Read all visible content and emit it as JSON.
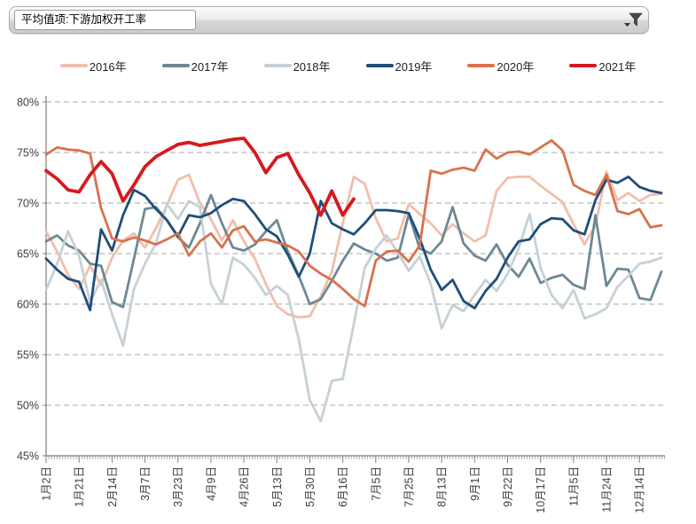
{
  "header": {
    "field_button_label": "平均值项:下游加权开工率",
    "filter_icon": "funnel-icon"
  },
  "chart_data": {
    "type": "line",
    "title": "",
    "xlabel": "",
    "ylabel": "",
    "ylim": [
      45,
      80
    ],
    "ytick_step": 5,
    "ytick_labels": [
      "80%",
      "75%",
      "70%",
      "65%",
      "60%",
      "55%",
      "50%",
      "45%"
    ],
    "grid": "dashed-horizontal",
    "legend_position": "top",
    "points_per_series": 57,
    "x_labels": [
      "1月2日",
      "1月21日",
      "2月14日",
      "3月7日",
      "3月23日",
      "4月9日",
      "4月26日",
      "5月13日",
      "5月30日",
      "6月16日",
      "7月5日",
      "7月25日",
      "8月13日",
      "9月1日",
      "9月22日",
      "10月17日",
      "11月5日",
      "11月24日",
      "12月14日"
    ],
    "x_label_every_n_points": 3,
    "series": [
      {
        "name": "2016年",
        "color": "#f0bfac",
        "values": [
          67.2,
          65.2,
          62.9,
          61.5,
          63.8,
          61.9,
          64.6,
          66.3,
          67.0,
          65.6,
          67.5,
          69.8,
          72.3,
          72.8,
          70.0,
          68.4,
          66.3,
          68.3,
          66.2,
          64.5,
          62.0,
          59.8,
          59.0,
          58.7,
          58.8,
          60.8,
          63.2,
          68.0,
          72.6,
          71.9,
          68.5,
          66.2,
          66.5,
          69.9,
          68.9,
          68.0,
          66.8,
          67.9,
          67.0,
          66.2,
          66.8,
          71.2,
          72.5,
          72.6,
          72.6,
          71.7,
          70.9,
          70.1,
          67.9,
          65.9,
          67.8,
          73.1,
          70.3,
          71.0,
          70.2,
          70.8,
          70.9
        ]
      },
      {
        "name": "2017年",
        "color": "#6d8995",
        "values": [
          66.2,
          66.8,
          65.8,
          65.3,
          64.0,
          63.8,
          60.2,
          59.7,
          64.5,
          69.4,
          69.6,
          68.3,
          66.6,
          65.6,
          68.0,
          70.8,
          68.0,
          65.6,
          65.3,
          65.9,
          67.2,
          68.3,
          65.2,
          62.8,
          60.0,
          60.5,
          62.3,
          64.3,
          66.0,
          65.4,
          65.0,
          64.3,
          64.6,
          68.9,
          65.5,
          65.0,
          66.2,
          69.6,
          66.0,
          64.8,
          64.3,
          65.9,
          63.9,
          62.7,
          64.5,
          62.1,
          62.6,
          62.9,
          61.9,
          61.5,
          68.8,
          61.8,
          63.5,
          63.4,
          60.6,
          60.4,
          63.2
        ]
      },
      {
        "name": "2018年",
        "color": "#c6d1d6",
        "values": [
          61.4,
          64.0,
          67.2,
          64.8,
          60.2,
          62.4,
          59.0,
          55.9,
          61.5,
          64.0,
          66.0,
          69.9,
          68.4,
          70.2,
          69.6,
          62.0,
          60.0,
          64.6,
          63.9,
          62.6,
          60.9,
          61.8,
          60.9,
          56.5,
          50.5,
          48.4,
          52.4,
          52.6,
          58.0,
          63.6,
          65.5,
          66.8,
          65.1,
          63.3,
          64.7,
          62.0,
          57.6,
          59.9,
          59.3,
          60.9,
          62.4,
          61.3,
          63.0,
          65.5,
          68.9,
          63.6,
          60.9,
          59.6,
          61.4,
          58.6,
          59.0,
          59.6,
          61.7,
          62.8,
          64.0,
          64.2,
          64.6
        ]
      },
      {
        "name": "2019年",
        "color": "#1f4e79",
        "values": [
          64.5,
          63.4,
          62.5,
          62.2,
          59.4,
          67.4,
          65.3,
          68.8,
          71.3,
          70.7,
          69.4,
          68.3,
          66.7,
          68.8,
          68.6,
          69.0,
          69.8,
          70.4,
          70.2,
          68.9,
          67.4,
          66.7,
          64.9,
          62.7,
          65.0,
          70.2,
          68.0,
          67.4,
          66.9,
          68.0,
          69.3,
          69.3,
          69.2,
          69.0,
          66.5,
          63.4,
          61.4,
          62.4,
          60.3,
          59.6,
          61.3,
          62.5,
          64.6,
          66.2,
          66.4,
          67.9,
          68.5,
          68.4,
          67.3,
          66.9,
          70.3,
          72.3,
          72.0,
          72.6,
          71.6,
          71.2,
          71.0
        ]
      },
      {
        "name": "2020年",
        "color": "#d9714e",
        "values": [
          74.8,
          75.5,
          75.3,
          75.2,
          74.9,
          69.5,
          66.5,
          66.2,
          66.6,
          66.3,
          65.9,
          66.4,
          67.0,
          64.8,
          66.2,
          67.0,
          65.6,
          67.3,
          67.7,
          66.2,
          66.4,
          66.1,
          65.8,
          65.2,
          63.8,
          63.0,
          62.4,
          61.5,
          60.5,
          59.8,
          64.3,
          65.2,
          65.3,
          64.2,
          65.8,
          73.2,
          72.9,
          73.3,
          73.5,
          73.2,
          75.3,
          74.4,
          75.0,
          75.1,
          74.8,
          75.5,
          76.2,
          75.2,
          71.8,
          71.2,
          70.8,
          72.8,
          69.2,
          68.9,
          69.4,
          67.6,
          67.8
        ]
      },
      {
        "name": "2021年",
        "color": "#d6191f",
        "line_width": 3.8,
        "values": [
          73.2,
          72.4,
          71.3,
          71.1,
          72.8,
          74.1,
          72.9,
          70.2,
          71.8,
          73.6,
          74.6,
          75.2,
          75.8,
          76.0,
          75.7,
          75.9,
          76.1,
          76.3,
          76.4,
          75.0,
          73.0,
          74.5,
          74.9,
          72.8,
          71.0,
          68.8,
          71.2,
          68.8,
          70.4
        ]
      }
    ]
  }
}
